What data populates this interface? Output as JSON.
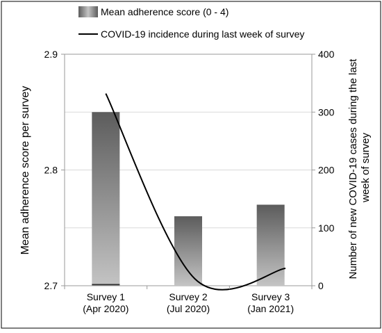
{
  "chart_data": {
    "type": "bar",
    "categories": [
      [
        "Survey 1",
        "(Apr 2020)"
      ],
      [
        "Survey 2",
        "(Jul 2020)"
      ],
      [
        "Survey 3",
        "(Jan 2021)"
      ]
    ],
    "series": [
      {
        "name": "Mean adherence score (0 - 4)",
        "kind": "bar",
        "axis": "left",
        "values": [
          2.85,
          2.76,
          2.77
        ]
      },
      {
        "name": "COVID-19 incidence during last week of survey",
        "kind": "smooth-line",
        "axis": "right",
        "x": [
          0,
          1.08,
          2.18
        ],
        "values": [
          332,
          12,
          30
        ]
      }
    ],
    "ylabel": "Mean adherence score per survey",
    "y2label": [
      "Number of new COVID-19 cases during the last",
      "week of survey"
    ],
    "ylim": [
      2.7,
      2.9
    ],
    "y2lim": [
      0,
      400
    ],
    "yticks": [
      "2.7",
      "2.8",
      "2.9"
    ],
    "y2ticks": [
      "0",
      "100",
      "200",
      "300",
      "400"
    ],
    "grid": true,
    "legend": "top",
    "colors": {
      "bar_dark": "#5c5c5c",
      "bar_light": "#c4c4c4",
      "line": "#000000",
      "grid": "#d9d9d9",
      "frame": "#9a9a9a"
    }
  }
}
